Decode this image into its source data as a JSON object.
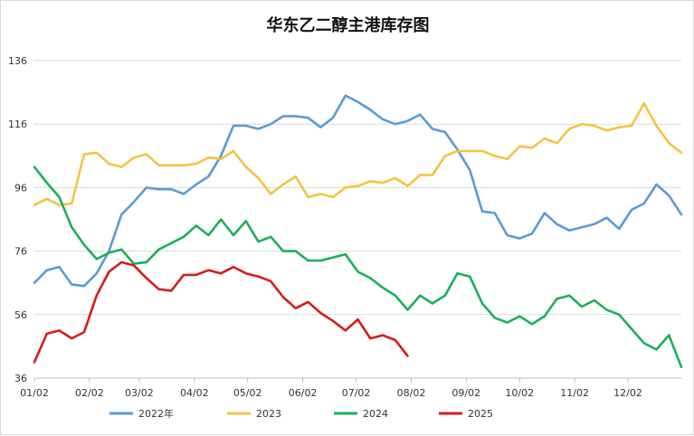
{
  "chart_data": {
    "type": "line",
    "title": "华东乙二醇主港库存图",
    "xlabel": "",
    "ylabel": "",
    "ylim": [
      36,
      136
    ],
    "yticks": [
      36,
      56,
      76,
      96,
      116,
      136
    ],
    "xlim": [
      1,
      53
    ],
    "xticks": [
      {
        "label": "01/02",
        "x": 1
      },
      {
        "label": "02/02",
        "x": 5.43
      },
      {
        "label": "03/02",
        "x": 9.43
      },
      {
        "label": "04/02",
        "x": 13.86
      },
      {
        "label": "05/02",
        "x": 18.14
      },
      {
        "label": "06/02",
        "x": 22.57
      },
      {
        "label": "07/02",
        "x": 26.86
      },
      {
        "label": "08/02",
        "x": 31.29
      },
      {
        "label": "09/02",
        "x": 35.71
      },
      {
        "label": "10/02",
        "x": 40
      },
      {
        "label": "11/02",
        "x": 44.43
      },
      {
        "label": "12/02",
        "x": 48.71
      }
    ],
    "grid": "horizontal",
    "legend_position": "bottom",
    "series": [
      {
        "name": "2022年",
        "color": "#5b9bd5",
        "x": [
          1,
          2,
          3,
          4,
          5,
          6,
          7,
          8,
          9,
          10,
          11,
          12,
          13,
          14,
          15,
          16,
          17,
          18,
          19,
          20,
          21,
          22,
          23,
          24,
          25,
          26,
          27,
          28,
          29,
          30,
          31,
          32,
          33,
          34,
          35,
          36,
          37,
          38,
          39,
          40,
          41,
          42,
          43,
          44,
          45,
          46,
          47,
          48,
          49,
          50,
          51,
          52,
          53
        ],
        "values": [
          66,
          70,
          71,
          65.5,
          65,
          69,
          76,
          87.5,
          91.5,
          96,
          95.5,
          95.5,
          94,
          97,
          99.5,
          106,
          115.5,
          115.5,
          114.5,
          116,
          118.5,
          118.5,
          118,
          115,
          118,
          125,
          123,
          120.5,
          117.5,
          116,
          117,
          119,
          114.5,
          113.5,
          108,
          101.5,
          88.5,
          88,
          81,
          80,
          81.5,
          88,
          84.5,
          82.5,
          83.5,
          84.5,
          86.5,
          83,
          89,
          91,
          97,
          93.5,
          87.5
        ]
      },
      {
        "name": "2023",
        "color": "#f5c242",
        "x": [
          1,
          2,
          3,
          4,
          5,
          6,
          7,
          8,
          9,
          10,
          11,
          12,
          13,
          14,
          15,
          16,
          17,
          18,
          19,
          20,
          21,
          22,
          23,
          24,
          25,
          26,
          27,
          28,
          29,
          30,
          31,
          32,
          33,
          34,
          35,
          36,
          37,
          38,
          39,
          40,
          41,
          42,
          43,
          44,
          45,
          46,
          47,
          48,
          49,
          50,
          51,
          52,
          53
        ],
        "values": [
          90.5,
          92.5,
          90.5,
          91,
          106.5,
          107,
          103.5,
          102.5,
          105.5,
          106.5,
          103,
          103,
          103,
          103.5,
          105.5,
          105,
          107.5,
          102.5,
          99,
          94,
          97,
          99.5,
          93,
          94,
          93,
          96,
          96.5,
          98,
          97.5,
          99,
          96.5,
          100,
          100,
          106,
          107.5,
          107.5,
          107.5,
          106,
          105,
          109,
          108.5,
          111.5,
          110,
          114.5,
          116,
          115.5,
          114,
          115,
          115.5,
          122.5,
          115.5,
          110,
          107
        ]
      },
      {
        "name": "2024",
        "color": "#1aaf5d",
        "x": [
          1,
          2,
          3,
          4,
          5,
          6,
          7,
          8,
          9,
          10,
          11,
          12,
          13,
          14,
          15,
          16,
          17,
          18,
          19,
          20,
          21,
          22,
          23,
          24,
          25,
          26,
          27,
          28,
          29,
          30,
          31,
          32,
          33,
          34,
          35,
          36,
          37,
          38,
          39,
          40,
          41,
          42,
          43,
          44,
          45,
          46,
          47,
          48,
          49,
          50,
          51,
          52,
          53
        ],
        "values": [
          102.5,
          97.5,
          93,
          83.5,
          78,
          73.5,
          75.5,
          76.5,
          72,
          72.5,
          76.5,
          78.5,
          80.5,
          84,
          81,
          86,
          81,
          85.5,
          79,
          80.5,
          76,
          76,
          73,
          73,
          74,
          75,
          69.5,
          67.5,
          64.5,
          62,
          57.5,
          62,
          59.5,
          62,
          69,
          68,
          59.5,
          55,
          53.5,
          55.5,
          53,
          55.5,
          61,
          62,
          58.5,
          60.5,
          57.5,
          56,
          51.5,
          47,
          45,
          49.5,
          39.5
        ]
      },
      {
        "name": "2025",
        "color": "#d91a1a",
        "x": [
          1,
          2,
          3,
          4,
          5,
          6,
          7,
          8,
          9,
          10,
          11,
          12,
          13,
          14,
          15,
          16,
          17,
          18,
          19,
          20,
          21,
          22,
          23,
          24,
          25,
          26,
          27,
          28,
          29,
          30,
          31
        ],
        "values": [
          41,
          50,
          51,
          48.5,
          50.5,
          62,
          69.5,
          72.5,
          71.5,
          67.5,
          64,
          63.5,
          68.5,
          68.5,
          70,
          69,
          71,
          69,
          68,
          66.5,
          61.5,
          58,
          60,
          56.5,
          54,
          51,
          54.5,
          48.5,
          49.5,
          48,
          43
        ]
      }
    ]
  }
}
